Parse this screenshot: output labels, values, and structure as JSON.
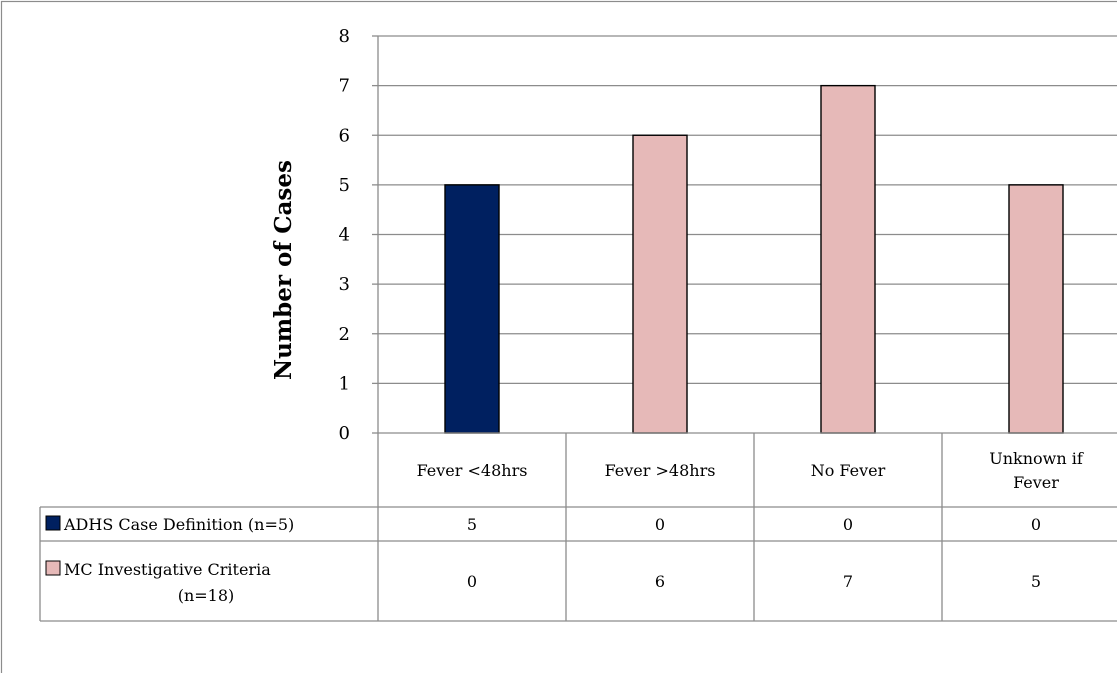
{
  "chart_data": {
    "type": "bar",
    "ylabel": "Number of Cases",
    "ylim": [
      0,
      8
    ],
    "yticks": [
      0,
      1,
      2,
      3,
      4,
      5,
      6,
      7,
      8
    ],
    "grid": true,
    "categories": [
      [
        "Fever <48hrs"
      ],
      [
        "Fever >48hrs"
      ],
      [
        "No Fever"
      ],
      [
        "Unknown if",
        "Fever"
      ]
    ],
    "series": [
      {
        "name": "ADHS Case Definition (n=5)",
        "name_lines": [
          "ADHS Case Definition (n=5)"
        ],
        "color": "#002060",
        "values": [
          5,
          0,
          0,
          0
        ]
      },
      {
        "name": "MC Investigative Criteria (n=18)",
        "name_lines": [
          "MC Investigative Criteria",
          "(n=18)"
        ],
        "color": "#E6B9B8",
        "values": [
          0,
          6,
          7,
          5
        ]
      }
    ]
  }
}
